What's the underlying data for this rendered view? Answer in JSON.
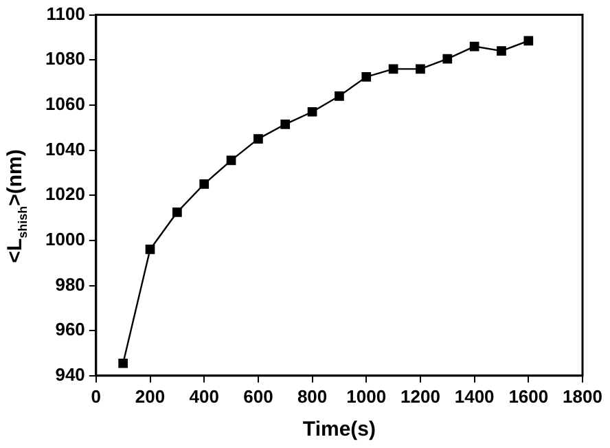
{
  "chart_data": {
    "type": "line",
    "xlabel": "Time(s)",
    "ylabel": "<L$_{shish}$>(nm)",
    "x": [
      100,
      200,
      300,
      400,
      500,
      600,
      700,
      800,
      900,
      1000,
      1100,
      1200,
      1300,
      1400,
      1500,
      1600
    ],
    "series": [
      {
        "color": "#000000",
        "values": [
          945.5,
          996,
          1012.5,
          1025,
          1035.5,
          1045,
          1051.5,
          1057,
          1064,
          1072.5,
          1076,
          1076,
          1080.5,
          1086,
          1084,
          1088.5
        ]
      }
    ],
    "xlim": [
      0,
      1800
    ],
    "xticks": [
      0,
      200,
      400,
      600,
      800,
      1000,
      1200,
      1400,
      1600,
      1800
    ],
    "ylim": [
      940,
      1100
    ],
    "yticks": [
      940,
      960,
      980,
      1000,
      1020,
      1040,
      1060,
      1080,
      1100
    ],
    "grid": false,
    "legend": false,
    "marker": "square",
    "line_style": "solid"
  }
}
